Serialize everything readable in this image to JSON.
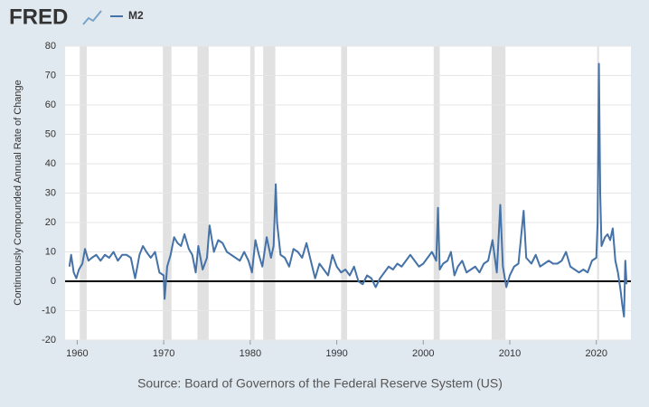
{
  "chart_data": {
    "type": "line",
    "brand": "FRED",
    "ylabel": "Continuously Compounded Annual Rate of Change",
    "source": "Source: Board of Governors of the Federal Reserve System (US)",
    "xlim": [
      1958.6,
      2024
    ],
    "ylim": [
      -20,
      80
    ],
    "xticks": [
      1960,
      1970,
      1980,
      1990,
      2000,
      2010,
      2020
    ],
    "yticks": [
      -20,
      -10,
      0,
      10,
      20,
      30,
      40,
      50,
      60,
      70,
      80
    ],
    "grid": true,
    "recessions": [
      [
        1960.3,
        1961.1
      ],
      [
        1969.9,
        1970.9
      ],
      [
        1973.9,
        1975.2
      ],
      [
        1980.0,
        1980.5
      ],
      [
        1981.5,
        1982.9
      ],
      [
        1990.5,
        1991.2
      ],
      [
        2001.2,
        2001.9
      ],
      [
        2007.9,
        2009.5
      ],
      [
        2020.1,
        2020.3
      ]
    ],
    "x": [
      1959.1,
      1959.3,
      1959.6,
      1959.9,
      1960.2,
      1960.6,
      1960.9,
      1961.3,
      1961.7,
      1962.2,
      1962.7,
      1963.2,
      1963.7,
      1964.2,
      1964.7,
      1965.2,
      1965.7,
      1966.2,
      1966.7,
      1967.2,
      1967.6,
      1968.0,
      1968.5,
      1969.0,
      1969.5,
      1970.0,
      1970.1,
      1970.4,
      1970.8,
      1971.2,
      1971.6,
      1972.0,
      1972.4,
      1972.9,
      1973.3,
      1973.7,
      1974.0,
      1974.5,
      1975.0,
      1975.3,
      1975.8,
      1976.3,
      1976.8,
      1977.3,
      1977.8,
      1978.3,
      1978.8,
      1979.3,
      1979.8,
      1980.2,
      1980.6,
      1981.0,
      1981.4,
      1981.9,
      1982.4,
      1982.7,
      1982.95,
      1983.1,
      1983.5,
      1984.0,
      1984.5,
      1985.0,
      1985.5,
      1986.0,
      1986.5,
      1987.0,
      1987.5,
      1988.0,
      1988.5,
      1989.0,
      1989.5,
      1990.0,
      1990.5,
      1991.0,
      1991.5,
      1992.0,
      1992.5,
      1993.0,
      1993.5,
      1994.0,
      1994.5,
      1995.0,
      1995.5,
      1996.0,
      1996.5,
      1997.0,
      1997.5,
      1998.0,
      1998.5,
      1999.0,
      1999.5,
      2000.0,
      2000.5,
      2001.0,
      2001.5,
      2001.7,
      2001.9,
      2002.3,
      2002.8,
      2003.2,
      2003.6,
      2004.0,
      2004.5,
      2005.0,
      2005.5,
      2006.0,
      2006.5,
      2007.0,
      2007.5,
      2008.0,
      2008.5,
      2008.9,
      2009.2,
      2009.6,
      2010.0,
      2010.5,
      2011.0,
      2011.6,
      2011.9,
      2012.5,
      2013.0,
      2013.5,
      2014.0,
      2014.5,
      2015.0,
      2015.5,
      2016.0,
      2016.5,
      2017.0,
      2017.5,
      2018.0,
      2018.5,
      2019.0,
      2019.5,
      2020.0,
      2020.15,
      2020.3,
      2020.45,
      2020.6,
      2021.0,
      2021.3,
      2021.6,
      2021.9,
      2022.2,
      2022.5,
      2022.8,
      2023.0,
      2023.2,
      2023.35,
      2023.5
    ],
    "series": [
      {
        "name": "M2",
        "color": "#4572a7",
        "values": [
          5,
          9,
          3,
          1,
          4,
          6,
          11,
          7,
          8,
          9,
          7,
          9,
          8,
          10,
          7,
          9,
          9,
          8,
          1,
          9,
          12,
          10,
          8,
          10,
          3,
          2,
          -6,
          5,
          9,
          15,
          13,
          12,
          16,
          11,
          9,
          3,
          12,
          4,
          8,
          19,
          10,
          14,
          13,
          10,
          9,
          8,
          7,
          10,
          7,
          3,
          14,
          9,
          5,
          15,
          8,
          12,
          33,
          20,
          9,
          8,
          5,
          11,
          10,
          8,
          13,
          7,
          1,
          6,
          4,
          2,
          9,
          5,
          3,
          4,
          2,
          5,
          0,
          -1,
          2,
          1,
          -2,
          1,
          3,
          5,
          4,
          6,
          5,
          7,
          9,
          7,
          5,
          6,
          8,
          10,
          7,
          25,
          4,
          6,
          7,
          10,
          2,
          5,
          7,
          3,
          4,
          5,
          3,
          6,
          7,
          14,
          3,
          26,
          5,
          -2,
          2,
          5,
          6,
          24,
          8,
          6,
          9,
          5,
          6,
          7,
          6,
          6,
          7,
          10,
          5,
          4,
          3,
          4,
          3,
          7,
          8,
          20,
          74,
          30,
          12,
          15,
          16,
          14,
          18,
          7,
          3,
          -3,
          -8,
          -12,
          7,
          -1
        ]
      }
    ]
  }
}
